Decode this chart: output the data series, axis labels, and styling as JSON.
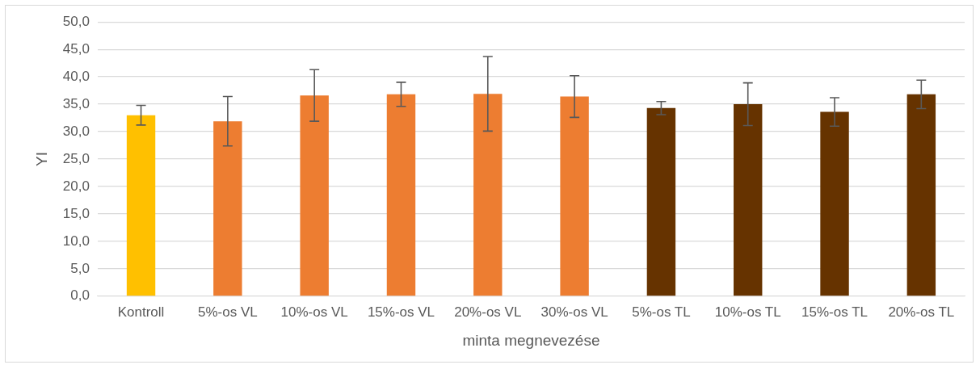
{
  "chart_data": {
    "type": "bar",
    "xlabel": "minta megnevezése",
    "ylabel": "YI",
    "categories": [
      "Kontroll",
      "5%-os VL",
      "10%-os VL",
      "15%-os VL",
      "20%-os VL",
      "30%-os VL",
      "5%-os TL",
      "10%-os TL",
      "15%-os TL",
      "20%-os TL"
    ],
    "values": [
      33.0,
      31.9,
      36.6,
      36.8,
      36.9,
      36.4,
      34.3,
      35.0,
      33.6,
      36.8
    ],
    "errors": [
      1.8,
      4.5,
      4.7,
      2.2,
      6.8,
      3.8,
      1.2,
      3.9,
      2.6,
      2.6
    ],
    "colors": [
      "#ffc000",
      "#ed7d31",
      "#ed7d31",
      "#ed7d31",
      "#ed7d31",
      "#ed7d31",
      "#663300",
      "#663300",
      "#663300",
      "#663300"
    ],
    "ylim": [
      0,
      50
    ],
    "yticks": [
      {
        "value": 0,
        "label": "0,0"
      },
      {
        "value": 5,
        "label": "5,0"
      },
      {
        "value": 10,
        "label": "10,0"
      },
      {
        "value": 15,
        "label": "15,0"
      },
      {
        "value": 20,
        "label": "20,0"
      },
      {
        "value": 25,
        "label": "25,0"
      },
      {
        "value": 30,
        "label": "30,0"
      },
      {
        "value": 35,
        "label": "35,0"
      },
      {
        "value": 40,
        "label": "40,0"
      },
      {
        "value": 45,
        "label": "45,0"
      },
      {
        "value": 50,
        "label": "50,0"
      }
    ],
    "grid": "y",
    "legend": false
  }
}
